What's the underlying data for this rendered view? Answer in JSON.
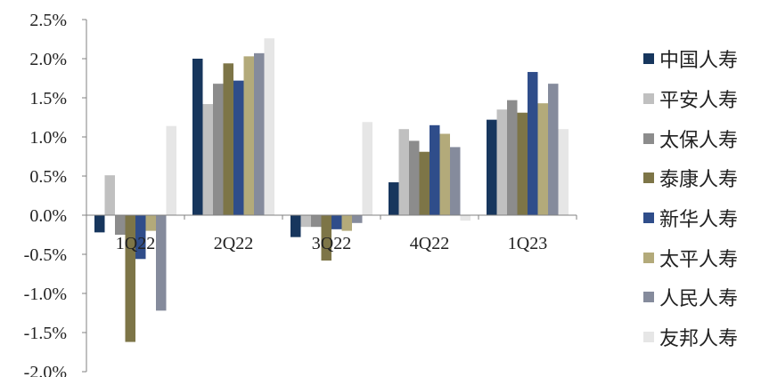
{
  "chart_data": {
    "type": "bar",
    "categories": [
      "1Q22",
      "2Q22",
      "3Q22",
      "4Q22",
      "1Q23"
    ],
    "ylim": [
      -2.0,
      2.5
    ],
    "yticks": [
      "2.5%",
      "2.0%",
      "1.5%",
      "1.0%",
      "0.5%",
      "0.0%",
      "-0.5%",
      "-1.0%",
      "-1.5%",
      "-2.0%"
    ],
    "legend_position": "right",
    "grid": false,
    "series": [
      {
        "name": "中国人寿",
        "color": "#17365d",
        "values": [
          -0.22,
          2.0,
          -0.28,
          0.42,
          1.22
        ]
      },
      {
        "name": "平安人寿",
        "color": "#c0c0c0",
        "values": [
          0.51,
          1.42,
          -0.15,
          1.1,
          1.35
        ]
      },
      {
        "name": "太保人寿",
        "color": "#8c8c8c",
        "values": [
          -0.25,
          1.68,
          -0.15,
          0.95,
          1.47
        ]
      },
      {
        "name": "泰康人寿",
        "color": "#7d7547",
        "values": [
          -1.62,
          1.94,
          -0.58,
          0.81,
          1.31
        ]
      },
      {
        "name": "新华人寿",
        "color": "#2f4d8a",
        "values": [
          -0.56,
          1.72,
          -0.18,
          1.15,
          1.83
        ]
      },
      {
        "name": "太平人寿",
        "color": "#b3aa7a",
        "values": [
          -0.2,
          2.03,
          -0.2,
          1.04,
          1.43
        ]
      },
      {
        "name": "人民人寿",
        "color": "#858b9c",
        "values": [
          -1.22,
          2.07,
          -0.1,
          0.87,
          1.68
        ]
      },
      {
        "name": "友邦人寿",
        "color": "#e6e6e6",
        "values": [
          1.14,
          2.26,
          1.19,
          -0.07,
          1.1
        ]
      }
    ]
  }
}
